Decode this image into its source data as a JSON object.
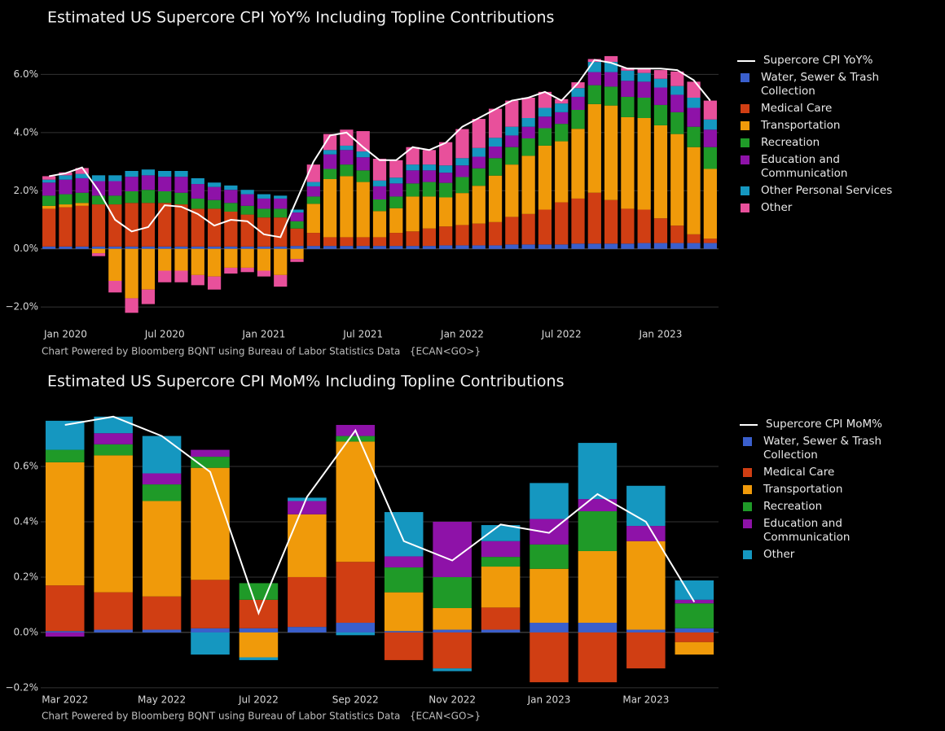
{
  "chart_data": [
    {
      "type": "bar",
      "title": "Estimated US Supercore CPI YoY% Including Topline Contributions",
      "caption": "Chart Powered by Bloomberg BQNT using Bureau of Labor Statistics Data   {ECAN<GO>}",
      "x": [
        "2019-12",
        "2020-01",
        "2020-02",
        "2020-03",
        "2020-04",
        "2020-05",
        "2020-06",
        "2020-07",
        "2020-08",
        "2020-09",
        "2020-10",
        "2020-11",
        "2020-12",
        "2021-01",
        "2021-02",
        "2021-03",
        "2021-04",
        "2021-05",
        "2021-06",
        "2021-07",
        "2021-08",
        "2021-09",
        "2021-10",
        "2021-11",
        "2021-12",
        "2022-01",
        "2022-02",
        "2022-03",
        "2022-04",
        "2022-05",
        "2022-06",
        "2022-07",
        "2022-08",
        "2022-09",
        "2022-10",
        "2022-11",
        "2022-12",
        "2023-01",
        "2023-02",
        "2023-03",
        "2023-04"
      ],
      "xlim": [
        "2019-12",
        "2023-04"
      ],
      "xticks": [
        {
          "value": "2020-01",
          "label": "Jan 2020"
        },
        {
          "value": "2020-07",
          "label": "Jul 2020"
        },
        {
          "value": "2021-01",
          "label": "Jan 2021"
        },
        {
          "value": "2021-07",
          "label": "Jul 2021"
        },
        {
          "value": "2022-01",
          "label": "Jan 2022"
        },
        {
          "value": "2022-07",
          "label": "Jul 2022"
        },
        {
          "value": "2023-01",
          "label": "Jan 2023"
        }
      ],
      "ylim": [
        -2.5,
        6.6
      ],
      "yticks": [
        {
          "value": -2,
          "label": "−2.0%"
        },
        {
          "value": 0,
          "label": "0.0%"
        },
        {
          "value": 2,
          "label": "2.0%"
        },
        {
          "value": 4,
          "label": "4.0%"
        },
        {
          "value": 6,
          "label": "6.0%"
        }
      ],
      "grid": true,
      "legend": "right",
      "series": [
        {
          "name": "Supercore CPI YoY%",
          "type": "line",
          "color": "#ffffff",
          "values": [
            2.5,
            2.6,
            2.8,
            2.0,
            1.0,
            0.6,
            0.75,
            1.5,
            1.45,
            1.2,
            0.8,
            1.0,
            0.95,
            0.5,
            0.4,
            1.7,
            3.0,
            3.9,
            4.0,
            3.5,
            3.05,
            3.05,
            3.5,
            3.4,
            3.65,
            4.2,
            4.5,
            4.8,
            5.1,
            5.2,
            5.4,
            5.1,
            5.7,
            6.5,
            6.4,
            6.2,
            6.2,
            6.2,
            6.15,
            5.8,
            5.1
          ]
        },
        {
          "name": "Water, Sewer & Trash Collection",
          "color": "#3a5fcd",
          "values": [
            0.08,
            0.08,
            0.08,
            0.08,
            0.08,
            0.08,
            0.08,
            0.08,
            0.08,
            0.08,
            0.08,
            0.08,
            0.08,
            0.08,
            0.08,
            0.1,
            0.1,
            0.1,
            0.1,
            0.1,
            0.1,
            0.1,
            0.1,
            0.1,
            0.12,
            0.12,
            0.12,
            0.12,
            0.15,
            0.15,
            0.15,
            0.15,
            0.18,
            0.18,
            0.18,
            0.18,
            0.2,
            0.2,
            0.2,
            0.2,
            0.2
          ]
        },
        {
          "name": "Medical Care",
          "color": "#d03e13",
          "values": [
            1.3,
            1.35,
            1.4,
            1.45,
            1.45,
            1.5,
            1.5,
            1.5,
            1.45,
            1.3,
            1.3,
            1.2,
            1.1,
            1.0,
            1.0,
            0.6,
            0.45,
            0.3,
            0.3,
            0.3,
            0.3,
            0.45,
            0.5,
            0.6,
            0.65,
            0.7,
            0.75,
            0.8,
            0.95,
            1.05,
            1.2,
            1.45,
            1.55,
            1.75,
            1.5,
            1.2,
            1.15,
            0.85,
            0.6,
            0.3,
            0.15
          ]
        },
        {
          "name": "Transportation",
          "color": "#f09a0a",
          "values": [
            0.1,
            0.1,
            0.1,
            -0.15,
            -1.1,
            -1.7,
            -1.4,
            -0.75,
            -0.75,
            -0.9,
            -0.95,
            -0.65,
            -0.65,
            -0.75,
            -0.9,
            -0.35,
            1.0,
            2.0,
            2.1,
            1.9,
            0.9,
            0.85,
            1.2,
            1.1,
            1.0,
            1.1,
            1.3,
            1.6,
            1.8,
            2.0,
            2.2,
            2.1,
            2.4,
            3.05,
            3.25,
            3.15,
            3.15,
            3.2,
            3.15,
            3.0,
            2.4
          ]
        },
        {
          "name": "Recreation",
          "color": "#1f9a28",
          "values": [
            0.35,
            0.35,
            0.35,
            0.3,
            0.3,
            0.4,
            0.45,
            0.4,
            0.4,
            0.35,
            0.3,
            0.3,
            0.3,
            0.3,
            0.3,
            0.25,
            0.25,
            0.35,
            0.4,
            0.4,
            0.4,
            0.4,
            0.45,
            0.5,
            0.5,
            0.55,
            0.6,
            0.6,
            0.6,
            0.6,
            0.6,
            0.6,
            0.65,
            0.65,
            0.65,
            0.7,
            0.7,
            0.7,
            0.75,
            0.7,
            0.75
          ]
        },
        {
          "name": "Education and Communication",
          "color": "#8e12a8",
          "values": [
            0.45,
            0.5,
            0.5,
            0.5,
            0.5,
            0.5,
            0.5,
            0.5,
            0.55,
            0.5,
            0.45,
            0.45,
            0.4,
            0.35,
            0.35,
            0.3,
            0.35,
            0.5,
            0.5,
            0.45,
            0.45,
            0.45,
            0.45,
            0.4,
            0.35,
            0.4,
            0.4,
            0.4,
            0.4,
            0.4,
            0.4,
            0.4,
            0.45,
            0.45,
            0.5,
            0.55,
            0.55,
            0.6,
            0.6,
            0.65,
            0.6
          ]
        },
        {
          "name": "Other Personal Services",
          "color": "#1597c0",
          "values": [
            0.1,
            0.15,
            0.15,
            0.2,
            0.2,
            0.2,
            0.2,
            0.2,
            0.2,
            0.2,
            0.15,
            0.15,
            0.15,
            0.15,
            0.1,
            0.1,
            0.15,
            0.15,
            0.15,
            0.2,
            0.2,
            0.2,
            0.2,
            0.2,
            0.25,
            0.25,
            0.3,
            0.3,
            0.3,
            0.3,
            0.3,
            0.3,
            0.3,
            0.35,
            0.35,
            0.35,
            0.3,
            0.3,
            0.3,
            0.35,
            0.35
          ]
        },
        {
          "name": "Other",
          "color": "#e8509b",
          "values": [
            0.12,
            0.1,
            0.2,
            -0.1,
            -0.4,
            -0.5,
            -0.5,
            -0.4,
            -0.4,
            -0.35,
            -0.45,
            -0.2,
            -0.15,
            -0.2,
            -0.4,
            -0.1,
            0.6,
            0.55,
            0.55,
            0.7,
            0.75,
            0.6,
            0.6,
            0.5,
            0.8,
            1.0,
            1.0,
            1.0,
            0.9,
            0.7,
            0.55,
            0.15,
            0.2,
            0.1,
            0.2,
            0.1,
            0.15,
            0.3,
            0.5,
            0.55,
            0.65
          ]
        }
      ]
    },
    {
      "type": "bar",
      "title": "Estimated US Supercore CPI MoM% Including Topline Contributions",
      "caption": "Chart Powered by Bloomberg BQNT using Bureau of Labor Statistics Data   {ECAN<GO>}",
      "x": [
        "2022-03",
        "2022-04",
        "2022-05",
        "2022-06",
        "2022-07",
        "2022-08",
        "2022-09",
        "2022-10",
        "2022-11",
        "2022-12",
        "2023-01",
        "2023-02",
        "2023-03",
        "2023-04"
      ],
      "xlim": [
        "2022-03",
        "2023-04"
      ],
      "xticks": [
        {
          "value": "2022-03",
          "label": "Mar 2022"
        },
        {
          "value": "2022-05",
          "label": "May 2022"
        },
        {
          "value": "2022-07",
          "label": "Jul 2022"
        },
        {
          "value": "2022-09",
          "label": "Sep 2022"
        },
        {
          "value": "2022-11",
          "label": "Nov 2022"
        },
        {
          "value": "2023-01",
          "label": "Jan 2023"
        },
        {
          "value": "2023-03",
          "label": "Mar 2023"
        }
      ],
      "ylim": [
        -0.215,
        0.8
      ],
      "yticks": [
        {
          "value": -0.2,
          "label": "−0.2%"
        },
        {
          "value": 0,
          "label": "0.0%"
        },
        {
          "value": 0.2,
          "label": "0.2%"
        },
        {
          "value": 0.4,
          "label": "0.4%"
        },
        {
          "value": 0.6,
          "label": "0.6%"
        }
      ],
      "grid": true,
      "legend": "right",
      "series": [
        {
          "name": "Supercore CPI MoM%",
          "type": "line",
          "color": "#ffffff",
          "values": [
            0.75,
            0.78,
            0.71,
            0.58,
            0.07,
            0.49,
            0.73,
            0.33,
            0.26,
            0.39,
            0.36,
            0.5,
            0.4,
            0.11
          ]
        },
        {
          "name": "Water, Sewer & Trash Collection",
          "color": "#3a5fcd",
          "values": [
            0.005,
            0.01,
            0.01,
            0.015,
            0.015,
            0.02,
            0.035,
            0.005,
            0.01,
            0.01,
            0.035,
            0.035,
            0.01,
            0.015
          ]
        },
        {
          "name": "Medical Care",
          "color": "#d03e13",
          "values": [
            0.165,
            0.135,
            0.12,
            0.175,
            0.103,
            0.18,
            0.22,
            -0.1,
            -0.13,
            0.08,
            -0.18,
            -0.18,
            -0.13,
            -0.035
          ]
        },
        {
          "name": "Transportation",
          "color": "#f09a0a",
          "values": [
            0.445,
            0.495,
            0.345,
            0.405,
            -0.09,
            0.227,
            0.435,
            0.14,
            0.078,
            0.148,
            0.195,
            0.259,
            0.32,
            -0.045
          ]
        },
        {
          "name": "Recreation",
          "color": "#1f9a28",
          "values": [
            0.045,
            0.04,
            0.06,
            0.04,
            0.06,
            0,
            0.02,
            0.09,
            0.112,
            0.035,
            0.088,
            0.144,
            0,
            0.09
          ]
        },
        {
          "name": "Education and Communication",
          "color": "#8e12a8",
          "values": [
            -0.015,
            0.04,
            0.04,
            0.025,
            0,
            0.048,
            0.04,
            0.04,
            0.2,
            0.057,
            0.092,
            0.044,
            0.055,
            0.013
          ]
        },
        {
          "name": "Other",
          "color": "#1597c0",
          "values": [
            0.105,
            0.06,
            0.135,
            -0.08,
            -0.01,
            0.012,
            -0.01,
            0.16,
            -0.01,
            0.058,
            0.13,
            0.203,
            0.145,
            0.07
          ]
        }
      ]
    }
  ]
}
